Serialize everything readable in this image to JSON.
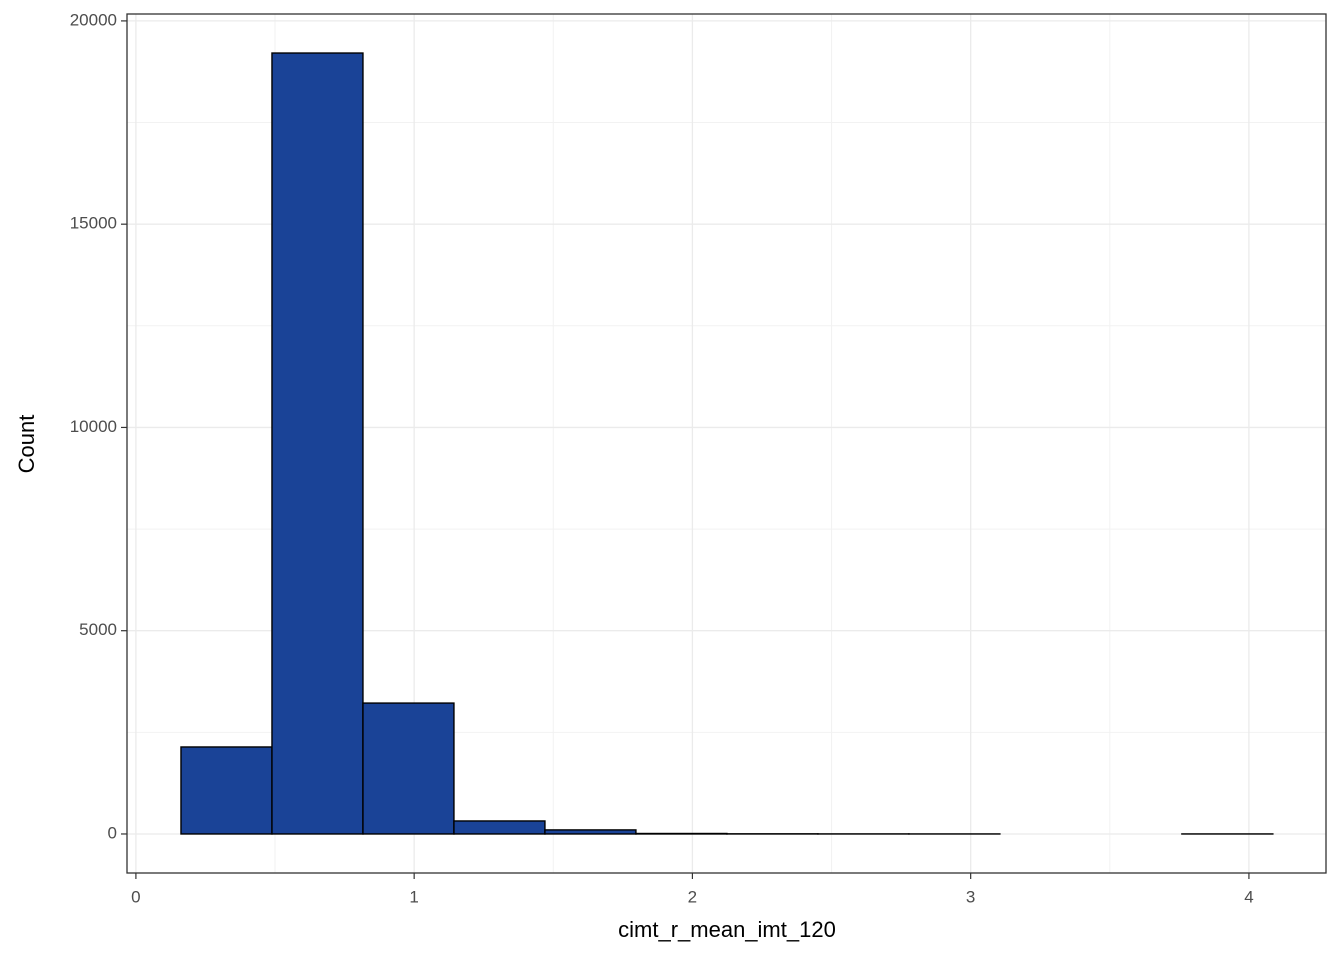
{
  "chart_data": {
    "type": "histogram",
    "x_label": "cimt_r_mean_imt_120",
    "y_label": "Count",
    "bins": [
      0.162,
      0.489,
      0.816,
      1.143,
      1.47,
      1.797,
      2.124,
      2.451,
      2.778,
      3.105,
      3.432,
      3.759,
      4.086
    ],
    "values": [
      2140,
      19210,
      3220,
      320,
      100,
      12,
      4,
      2,
      1,
      0,
      0,
      1
    ],
    "color": "#1a4397",
    "xlim": [
      -0.032,
      4.277
    ],
    "ylim": [
      -960,
      20170
    ],
    "xticks": [
      0,
      1,
      2,
      3,
      4
    ],
    "yticks": [
      0,
      5000,
      10000,
      15000,
      20000
    ],
    "grid": true,
    "minor_grid": true
  }
}
